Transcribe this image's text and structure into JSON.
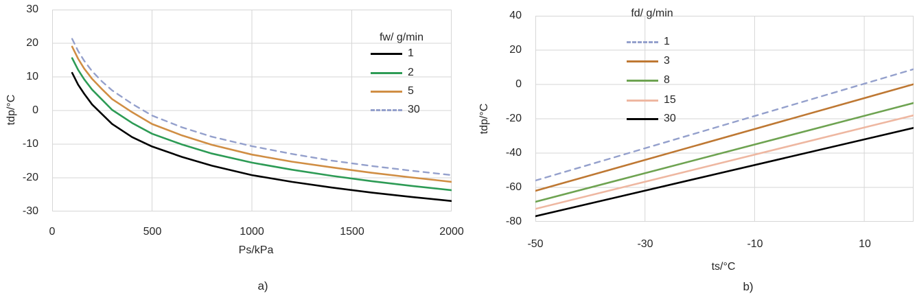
{
  "figure": {
    "background": "#ffffff",
    "grid_color": "#d6d6d6",
    "text_color": "#262626"
  },
  "chart_data": [
    {
      "type": "line",
      "caption": "a)",
      "xlabel": "Ps/kPa",
      "ylabel": "tdp/°C",
      "legend_title": "fw/ g/min",
      "legend_position": "inside-top-right",
      "grid": true,
      "grid_color": "#d6d6d6",
      "x_range": [
        0,
        2000
      ],
      "y_range": [
        -30,
        30
      ],
      "xticks": [
        0,
        500,
        1000,
        1500,
        2000
      ],
      "xtick_labels": [
        "0",
        "500",
        "1000",
        "1500",
        "2000"
      ],
      "yticks": [
        30,
        20,
        10,
        0,
        -10,
        -20,
        -30
      ],
      "ytick_labels": [
        "30",
        "20",
        "10",
        "0",
        "-10",
        "-20",
        "-30"
      ],
      "x": [
        100,
        130,
        160,
        200,
        250,
        300,
        400,
        500,
        650,
        800,
        1000,
        1200,
        1400,
        1600,
        1800,
        2000
      ],
      "series": [
        {
          "name": "1",
          "color": "#000000",
          "width": 2.6,
          "dash": null,
          "values": [
            11.2,
            7.7,
            5.0,
            1.8,
            -1.1,
            -4.0,
            -7.9,
            -10.7,
            -13.8,
            -16.4,
            -19.2,
            -21.2,
            -22.9,
            -24.4,
            -25.7,
            -26.9
          ]
        },
        {
          "name": "2",
          "color": "#2d9b55",
          "width": 2.6,
          "dash": null,
          "values": [
            15.6,
            12.1,
            9.3,
            6.2,
            3.2,
            0.2,
            -3.7,
            -6.9,
            -10.1,
            -12.8,
            -15.5,
            -17.6,
            -19.4,
            -21.0,
            -22.4,
            -23.7
          ]
        },
        {
          "name": "5",
          "color": "#d08e44",
          "width": 2.6,
          "dash": null,
          "values": [
            19.0,
            15.4,
            12.5,
            9.4,
            6.3,
            3.4,
            -0.5,
            -4.0,
            -7.4,
            -10.2,
            -13.1,
            -15.2,
            -16.9,
            -18.5,
            -19.9,
            -21.2
          ]
        },
        {
          "name": "30",
          "color": "#94a0cc",
          "width": 2.4,
          "dash": "8 7",
          "values": [
            21.3,
            17.7,
            14.8,
            11.7,
            8.6,
            6.0,
            2.0,
            -1.5,
            -5.0,
            -7.8,
            -10.6,
            -12.9,
            -14.9,
            -16.5,
            -17.9,
            -19.2
          ]
        }
      ]
    },
    {
      "type": "line",
      "caption": "b)",
      "xlabel": "ts/°C",
      "ylabel": "tdp/°C",
      "legend_title": "fd/ g/min",
      "legend_position": "inside-top-center",
      "grid": true,
      "grid_color": "#d6d6d6",
      "x_range": [
        -50,
        19
      ],
      "y_range": [
        -80,
        40
      ],
      "xticks": [
        -50,
        -30,
        -10,
        10
      ],
      "xtick_labels": [
        "-50",
        "-30",
        "-10",
        "10"
      ],
      "yticks": [
        40,
        20,
        0,
        -20,
        -40,
        -60,
        -80
      ],
      "ytick_labels": [
        "40",
        "20",
        "0",
        "-20",
        "-40",
        "-60",
        "-80"
      ],
      "x": [
        -50,
        19
      ],
      "series": [
        {
          "name": "1",
          "color": "#94a0cc",
          "width": 2.4,
          "dash": "8 7",
          "values": [
            -56.0,
            8.9
          ]
        },
        {
          "name": "3",
          "color": "#be7833",
          "width": 2.6,
          "dash": null,
          "values": [
            -62.0,
            0.1
          ]
        },
        {
          "name": "8",
          "color": "#6ea351",
          "width": 2.6,
          "dash": null,
          "values": [
            -68.4,
            -10.8
          ]
        },
        {
          "name": "15",
          "color": "#eeb7a1",
          "width": 2.6,
          "dash": null,
          "values": [
            -72.5,
            -18.0
          ]
        },
        {
          "name": "30",
          "color": "#000000",
          "width": 2.6,
          "dash": null,
          "values": [
            -76.8,
            -25.3
          ]
        }
      ]
    }
  ]
}
